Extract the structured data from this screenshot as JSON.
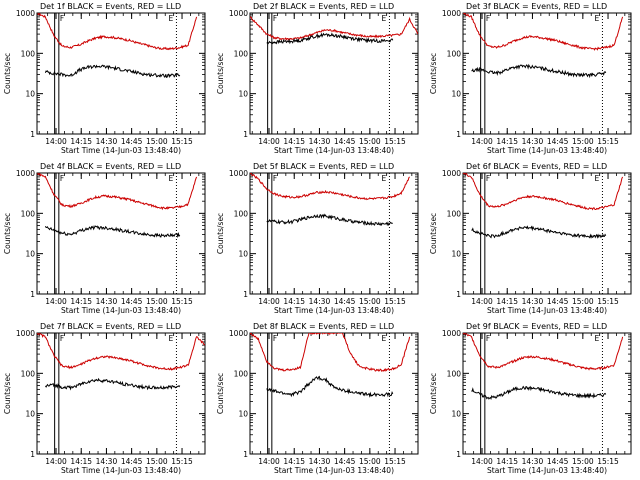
{
  "figure": {
    "x_axis_label": "Start Time (14-Jun-03 13:48:40)",
    "y_axis_label": "Counts/sec",
    "x_tick_labels": [
      "14:00",
      "14:15",
      "14:30",
      "14:45",
      "15:00",
      "15:15"
    ],
    "y_tick_labels": [
      "1",
      "10",
      "100",
      "1000"
    ],
    "marker_F": "F",
    "marker_E": "E",
    "colors": {
      "events": "#000000",
      "lld": "#cc0000",
      "axes": "#000000",
      "background": "#ffffff"
    }
  },
  "chart_data": [
    {
      "type": "line",
      "title": "Det 1f BLACK = Events, RED = LLD",
      "xlabel": "Start Time (14-Jun-03 13:48:40)",
      "ylabel": "Counts/sec",
      "y_scale": "log",
      "ylim": [
        1,
        1000
      ],
      "xlim_minutes_since_start": [
        0,
        100
      ],
      "x": [
        0,
        5,
        10,
        15,
        20,
        25,
        30,
        35,
        40,
        45,
        50,
        55,
        60,
        65,
        70,
        75,
        80,
        85,
        90,
        95,
        100
      ],
      "series": [
        {
          "name": "LLD",
          "color": "red",
          "values": [
            1000,
            800,
            280,
            150,
            140,
            160,
            200,
            240,
            260,
            250,
            230,
            210,
            180,
            160,
            140,
            130,
            130,
            140,
            160,
            800,
            null
          ]
        },
        {
          "name": "Events",
          "color": "black",
          "values": [
            null,
            35,
            32,
            30,
            28,
            38,
            45,
            48,
            47,
            44,
            40,
            36,
            33,
            30,
            29,
            28,
            28,
            29,
            null,
            null,
            null
          ]
        }
      ]
    },
    {
      "type": "line",
      "title": "Det 2f BLACK = Events, RED = LLD",
      "xlabel": "Start Time (14-Jun-03 13:48:40)",
      "ylabel": "Counts/sec",
      "y_scale": "log",
      "ylim": [
        1,
        1000
      ],
      "xlim_minutes_since_start": [
        0,
        100
      ],
      "x": [
        0,
        5,
        10,
        15,
        20,
        25,
        30,
        35,
        40,
        45,
        50,
        55,
        60,
        65,
        70,
        75,
        80,
        85,
        90,
        95,
        100
      ],
      "series": [
        {
          "name": "LLD",
          "color": "red",
          "values": [
            800,
            500,
            300,
            240,
            230,
            230,
            240,
            280,
            330,
            380,
            370,
            330,
            300,
            280,
            260,
            260,
            270,
            280,
            300,
            700,
            300
          ]
        },
        {
          "name": "Events",
          "color": "black",
          "values": [
            null,
            null,
            180,
            190,
            195,
            200,
            210,
            240,
            270,
            290,
            280,
            260,
            240,
            220,
            210,
            205,
            205,
            210,
            null,
            null,
            null
          ]
        }
      ]
    },
    {
      "type": "line",
      "title": "Det 3f BLACK = Events, RED = LLD",
      "xlabel": "Start Time (14-Jun-03 13:48:40)",
      "ylabel": "Counts/sec",
      "y_scale": "log",
      "ylim": [
        1,
        1000
      ],
      "xlim_minutes_since_start": [
        0,
        100
      ],
      "x": [
        0,
        5,
        10,
        15,
        20,
        25,
        30,
        35,
        40,
        45,
        50,
        55,
        60,
        65,
        70,
        75,
        80,
        85,
        90,
        95,
        100
      ],
      "series": [
        {
          "name": "LLD",
          "color": "red",
          "values": [
            1000,
            800,
            280,
            150,
            140,
            160,
            200,
            240,
            260,
            250,
            230,
            210,
            180,
            160,
            140,
            130,
            130,
            140,
            160,
            800,
            null
          ]
        },
        {
          "name": "Events",
          "color": "black",
          "values": [
            null,
            36,
            40,
            35,
            32,
            38,
            45,
            48,
            47,
            44,
            40,
            36,
            33,
            30,
            29,
            29,
            30,
            33,
            null,
            null,
            null
          ]
        }
      ]
    },
    {
      "type": "line",
      "title": "Det 4f BLACK = Events, RED = LLD",
      "xlabel": "Start Time (14-Jun-03 13:48:40)",
      "ylabel": "Counts/sec",
      "y_scale": "log",
      "ylim": [
        1,
        1000
      ],
      "xlim_minutes_since_start": [
        0,
        100
      ],
      "x": [
        0,
        5,
        10,
        15,
        20,
        25,
        30,
        35,
        40,
        45,
        50,
        55,
        60,
        65,
        70,
        75,
        80,
        85,
        90,
        95,
        100
      ],
      "series": [
        {
          "name": "LLD",
          "color": "red",
          "values": [
            1000,
            800,
            300,
            160,
            150,
            170,
            210,
            250,
            270,
            260,
            240,
            220,
            190,
            170,
            150,
            135,
            135,
            145,
            170,
            800,
            null
          ]
        },
        {
          "name": "Events",
          "color": "black",
          "values": [
            null,
            45,
            38,
            32,
            30,
            36,
            42,
            45,
            44,
            42,
            38,
            35,
            32,
            30,
            29,
            28,
            28,
            29,
            null,
            null,
            null
          ]
        }
      ]
    },
    {
      "type": "line",
      "title": "Det 5f BLACK = Events, RED = LLD",
      "xlabel": "Start Time (14-Jun-03 13:48:40)",
      "ylabel": "Counts/sec",
      "y_scale": "log",
      "ylim": [
        1,
        1000
      ],
      "xlim_minutes_since_start": [
        0,
        100
      ],
      "x": [
        0,
        5,
        10,
        15,
        20,
        25,
        30,
        35,
        40,
        45,
        50,
        55,
        60,
        65,
        70,
        75,
        80,
        85,
        90,
        95,
        100
      ],
      "series": [
        {
          "name": "LLD",
          "color": "red",
          "values": [
            1000,
            700,
            400,
            300,
            260,
            250,
            260,
            290,
            330,
            340,
            320,
            290,
            260,
            240,
            230,
            230,
            240,
            260,
            320,
            800,
            null
          ]
        },
        {
          "name": "Events",
          "color": "black",
          "values": [
            null,
            null,
            65,
            62,
            60,
            62,
            70,
            80,
            88,
            85,
            78,
            70,
            64,
            60,
            57,
            55,
            55,
            57,
            null,
            null,
            null
          ]
        }
      ]
    },
    {
      "type": "line",
      "title": "Det 6f BLACK = Events, RED = LLD",
      "xlabel": "Start Time (14-Jun-03 13:48:40)",
      "ylabel": "Counts/sec",
      "y_scale": "log",
      "ylim": [
        1,
        1000
      ],
      "xlim_minutes_since_start": [
        0,
        100
      ],
      "x": [
        0,
        5,
        10,
        15,
        20,
        25,
        30,
        35,
        40,
        45,
        50,
        55,
        60,
        65,
        70,
        75,
        80,
        85,
        90,
        95,
        100
      ],
      "series": [
        {
          "name": "LLD",
          "color": "red",
          "values": [
            1000,
            800,
            290,
            155,
            145,
            165,
            205,
            245,
            265,
            255,
            235,
            215,
            185,
            165,
            145,
            132,
            132,
            142,
            165,
            800,
            null
          ]
        },
        {
          "name": "Events",
          "color": "black",
          "values": [
            null,
            40,
            32,
            28,
            27,
            33,
            40,
            44,
            43,
            41,
            37,
            34,
            31,
            29,
            28,
            27,
            27,
            28,
            null,
            null,
            null
          ]
        }
      ]
    },
    {
      "type": "line",
      "title": "Det 7f BLACK = Events, RED = LLD",
      "xlabel": "Start Time (14-Jun-03 13:48:40)",
      "ylabel": "Counts/sec",
      "y_scale": "log",
      "ylim": [
        1,
        1000
      ],
      "xlim_minutes_since_start": [
        0,
        100
      ],
      "x": [
        0,
        5,
        10,
        15,
        20,
        25,
        30,
        35,
        40,
        45,
        50,
        55,
        60,
        65,
        70,
        75,
        80,
        85,
        90,
        95,
        100
      ],
      "series": [
        {
          "name": "LLD",
          "color": "red",
          "values": [
            1000,
            800,
            280,
            150,
            140,
            160,
            200,
            240,
            260,
            250,
            230,
            210,
            180,
            160,
            140,
            130,
            130,
            140,
            160,
            800,
            500
          ]
        },
        {
          "name": "Events",
          "color": "black",
          "values": [
            null,
            48,
            52,
            46,
            44,
            52,
            62,
            68,
            66,
            62,
            56,
            52,
            48,
            45,
            44,
            44,
            46,
            50,
            null,
            null,
            null
          ]
        }
      ]
    },
    {
      "type": "line",
      "title": "Det 8f BLACK = Events, RED = LLD",
      "xlabel": "Start Time (14-Jun-03 13:48:40)",
      "ylabel": "Counts/sec",
      "y_scale": "log",
      "ylim": [
        1,
        1000
      ],
      "xlim_minutes_since_start": [
        0,
        100
      ],
      "x": [
        0,
        5,
        10,
        15,
        20,
        25,
        30,
        35,
        40,
        45,
        50,
        55,
        60,
        65,
        70,
        75,
        80,
        85,
        90,
        95,
        100
      ],
      "series": [
        {
          "name": "LLD",
          "color": "red",
          "values": [
            1000,
            700,
            200,
            130,
            120,
            125,
            140,
            1000,
            1000,
            1000,
            1000,
            1000,
            300,
            150,
            130,
            120,
            120,
            130,
            160,
            800,
            null
          ]
        },
        {
          "name": "Events",
          "color": "black",
          "values": [
            null,
            null,
            40,
            36,
            32,
            30,
            35,
            55,
            80,
            70,
            45,
            38,
            35,
            32,
            30,
            30,
            30,
            31,
            null,
            null,
            null
          ]
        }
      ]
    },
    {
      "type": "line",
      "title": "Det 9f BLACK = Events, RED = LLD",
      "xlabel": "Start Time (14-Jun-03 13:48:40)",
      "ylabel": "Counts/sec",
      "y_scale": "log",
      "ylim": [
        1,
        1000
      ],
      "xlim_minutes_since_start": [
        0,
        100
      ],
      "x": [
        0,
        5,
        10,
        15,
        20,
        25,
        30,
        35,
        40,
        45,
        50,
        55,
        60,
        65,
        70,
        75,
        80,
        85,
        90,
        95,
        100
      ],
      "series": [
        {
          "name": "LLD",
          "color": "red",
          "values": [
            1000,
            800,
            280,
            150,
            140,
            160,
            200,
            240,
            260,
            250,
            230,
            210,
            180,
            160,
            140,
            130,
            130,
            140,
            160,
            800,
            null
          ]
        },
        {
          "name": "Events",
          "color": "black",
          "values": [
            null,
            40,
            30,
            25,
            26,
            32,
            40,
            44,
            43,
            41,
            37,
            34,
            31,
            29,
            28,
            28,
            28,
            30,
            null,
            null,
            null
          ]
        }
      ]
    }
  ]
}
